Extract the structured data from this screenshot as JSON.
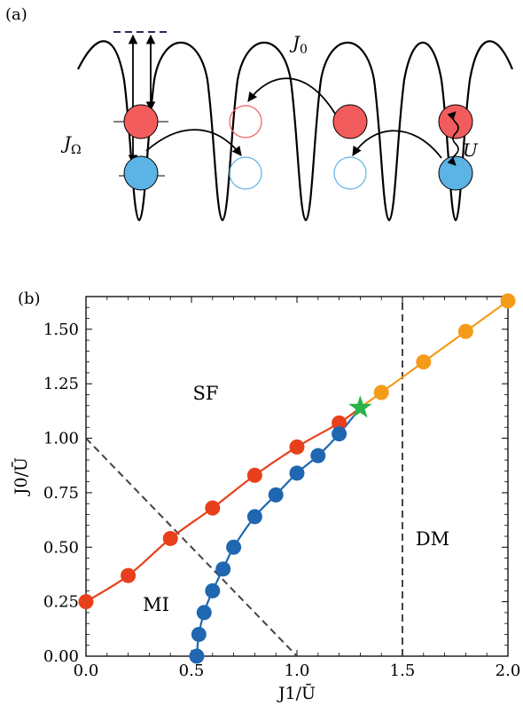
{
  "panel_a": {
    "label": "(a)",
    "labels": {
      "J0": "J",
      "J0_sub": "0",
      "JOmega": "J",
      "JOmega_sub": "Ω",
      "U": "U"
    }
  },
  "panel_b": {
    "label": "(b)"
  },
  "colors": {
    "red_line": "#e8401c",
    "red_atom": "#f25c5c",
    "blue": "#1f67b0",
    "blue_atom": "#5cb3e6",
    "orange": "#f59b1a",
    "star": "#2ab34a",
    "dashed": "#444444",
    "dash_level": "#2c2c54"
  },
  "chart_data": {
    "type": "scatter",
    "xlabel": "J1/Ū",
    "ylabel": "J0/Ū",
    "xlim": [
      0,
      2.0
    ],
    "ylim": [
      0,
      1.65
    ],
    "xticks": [
      "0.0",
      "0.5",
      "1.0",
      "1.5",
      "2.0"
    ],
    "yticks": [
      "0.00",
      "0.25",
      "0.50",
      "0.75",
      "1.00",
      "1.25",
      "1.50"
    ],
    "regions": [
      "SF",
      "MI",
      "DM"
    ],
    "series": [
      {
        "color": "red",
        "x": [
          0.0,
          0.2,
          0.4,
          0.6,
          0.8,
          1.0,
          1.2
        ],
        "y": [
          0.25,
          0.37,
          0.54,
          0.68,
          0.83,
          0.96,
          1.07
        ]
      },
      {
        "color": "blue",
        "x": [
          0.525,
          0.535,
          0.56,
          0.6,
          0.65,
          0.7,
          0.8,
          0.9,
          1.0,
          1.1,
          1.2
        ],
        "y": [
          0.0,
          0.1,
          0.2,
          0.3,
          0.4,
          0.5,
          0.64,
          0.74,
          0.84,
          0.92,
          1.02
        ]
      },
      {
        "color": "orange",
        "x": [
          1.4,
          1.6,
          1.8,
          2.0
        ],
        "y": [
          1.21,
          1.35,
          1.49,
          1.63
        ]
      }
    ],
    "star": {
      "x": 1.3,
      "y": 1.14
    },
    "dashed_lines": [
      {
        "from": [
          0,
          1.0
        ],
        "to": [
          1.0,
          0
        ]
      },
      {
        "from": [
          1.5,
          0
        ],
        "to": [
          1.5,
          1.65
        ]
      }
    ]
  }
}
